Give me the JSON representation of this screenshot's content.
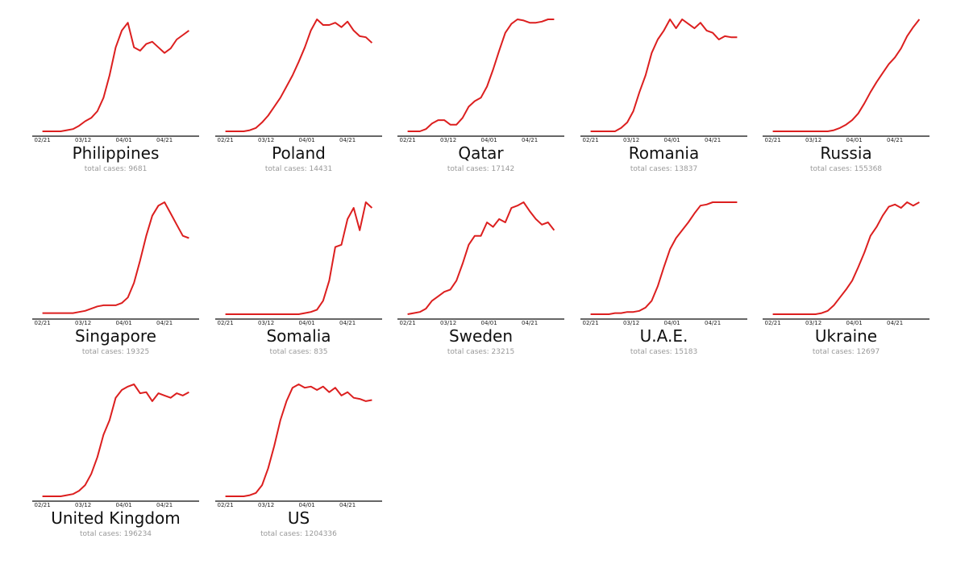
{
  "chart_data": {
    "type": "line",
    "subtitle_prefix": "total cases: ",
    "x_days_since_0221": [
      0,
      3,
      6,
      9,
      12,
      15,
      18,
      21,
      24,
      27,
      30,
      33,
      36,
      39,
      42,
      45,
      48,
      51,
      54,
      57,
      60,
      63,
      66,
      69,
      72
    ],
    "xtick_days": [
      0,
      20,
      40,
      60
    ],
    "xtick_labels": [
      "02/21",
      "03/12",
      "04/01",
      "04/21"
    ],
    "xlim": [
      -5,
      77
    ],
    "ylabel": "",
    "note_values": "daily cases normalized to each country's peak (0-1)",
    "line_color": "#dc1f1f",
    "panels": [
      {
        "title": "Philippines",
        "total": "9681",
        "values": [
          0,
          0,
          0,
          0,
          0.01,
          0.02,
          0.05,
          0.09,
          0.12,
          0.18,
          0.3,
          0.5,
          0.75,
          0.9,
          0.97,
          0.75,
          0.72,
          0.78,
          0.8,
          0.75,
          0.7,
          0.74,
          0.82,
          0.86,
          0.9
        ]
      },
      {
        "title": "Poland",
        "total": "14431",
        "values": [
          0,
          0,
          0,
          0,
          0.01,
          0.03,
          0.08,
          0.14,
          0.22,
          0.3,
          0.4,
          0.5,
          0.62,
          0.75,
          0.9,
          1.0,
          0.95,
          0.95,
          0.97,
          0.93,
          0.98,
          0.9,
          0.85,
          0.84,
          0.79
        ]
      },
      {
        "title": "Qatar",
        "total": "17142",
        "values": [
          0,
          0,
          0,
          0.02,
          0.07,
          0.1,
          0.1,
          0.06,
          0.06,
          0.12,
          0.22,
          0.27,
          0.3,
          0.4,
          0.55,
          0.72,
          0.88,
          0.96,
          1.0,
          0.99,
          0.97,
          0.97,
          0.98,
          1.0,
          1.0
        ]
      },
      {
        "title": "Romania",
        "total": "13837",
        "values": [
          0,
          0,
          0,
          0,
          0,
          0.03,
          0.08,
          0.18,
          0.35,
          0.5,
          0.7,
          0.82,
          0.9,
          1.0,
          0.92,
          1.0,
          0.96,
          0.92,
          0.97,
          0.9,
          0.88,
          0.82,
          0.85,
          0.84,
          0.84
        ]
      },
      {
        "title": "Russia",
        "total": "155368",
        "values": [
          0,
          0,
          0,
          0,
          0,
          0,
          0,
          0,
          0,
          0,
          0.01,
          0.03,
          0.06,
          0.1,
          0.16,
          0.25,
          0.35,
          0.44,
          0.52,
          0.6,
          0.66,
          0.74,
          0.85,
          0.93,
          1.0
        ]
      },
      {
        "title": "Singapore",
        "total": "19325",
        "values": [
          0.01,
          0.01,
          0.01,
          0.01,
          0.01,
          0.01,
          0.02,
          0.03,
          0.05,
          0.07,
          0.08,
          0.08,
          0.08,
          0.1,
          0.15,
          0.28,
          0.48,
          0.7,
          0.88,
          0.97,
          1.0,
          0.9,
          0.8,
          0.7,
          0.68
        ]
      },
      {
        "title": "Somalia",
        "total": "835",
        "values": [
          0,
          0,
          0,
          0,
          0,
          0,
          0,
          0,
          0,
          0,
          0,
          0,
          0,
          0.01,
          0.02,
          0.04,
          0.12,
          0.3,
          0.6,
          0.62,
          0.85,
          0.95,
          0.75,
          1.0,
          0.95
        ]
      },
      {
        "title": "Sweden",
        "total": "23215",
        "values": [
          0,
          0.01,
          0.02,
          0.05,
          0.12,
          0.16,
          0.2,
          0.22,
          0.3,
          0.45,
          0.62,
          0.7,
          0.7,
          0.82,
          0.78,
          0.85,
          0.82,
          0.95,
          0.97,
          1.0,
          0.92,
          0.85,
          0.8,
          0.82,
          0.75
        ]
      },
      {
        "title": "U.A.E.",
        "total": "15183",
        "values": [
          0,
          0,
          0,
          0,
          0.01,
          0.01,
          0.02,
          0.02,
          0.03,
          0.06,
          0.12,
          0.25,
          0.42,
          0.58,
          0.68,
          0.75,
          0.82,
          0.9,
          0.97,
          0.98,
          1.0,
          1.0,
          1.0,
          1.0,
          1.0
        ]
      },
      {
        "title": "Ukraine",
        "total": "12697",
        "values": [
          0,
          0,
          0,
          0,
          0,
          0,
          0,
          0,
          0.01,
          0.03,
          0.08,
          0.15,
          0.22,
          0.3,
          0.42,
          0.55,
          0.7,
          0.78,
          0.88,
          0.96,
          0.98,
          0.95,
          1.0,
          0.97,
          1.0
        ]
      },
      {
        "title": "United Kingdom",
        "total": "196234",
        "values": [
          0,
          0,
          0,
          0,
          0.01,
          0.02,
          0.05,
          0.1,
          0.2,
          0.35,
          0.55,
          0.68,
          0.88,
          0.95,
          0.98,
          1.0,
          0.92,
          0.93,
          0.85,
          0.92,
          0.9,
          0.88,
          0.92,
          0.9,
          0.93
        ]
      },
      {
        "title": "US",
        "total": "1204336",
        "values": [
          0,
          0,
          0,
          0,
          0.01,
          0.03,
          0.1,
          0.25,
          0.45,
          0.68,
          0.85,
          0.97,
          1.0,
          0.97,
          0.98,
          0.95,
          0.98,
          0.93,
          0.97,
          0.9,
          0.93,
          0.88,
          0.87,
          0.85,
          0.86
        ]
      }
    ]
  }
}
